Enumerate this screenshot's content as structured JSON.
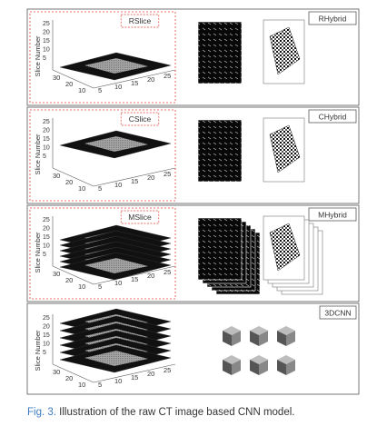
{
  "figure": {
    "caption_number": "Fig. 3.",
    "caption_text": "Illustration of the raw CT image based CNN model."
  },
  "panels": [
    {
      "model_tag": "RHybrid",
      "slice_tag": "RSlice",
      "z_label": "Slice Number",
      "z_ticks": [
        "25",
        "20",
        "15",
        "10",
        "5"
      ],
      "depth_ticks": [
        "30",
        "20",
        "10"
      ],
      "width_ticks": [
        "5",
        "10",
        "15",
        "20",
        "25"
      ]
    },
    {
      "model_tag": "CHybrid",
      "slice_tag": "CSlice",
      "z_label": "Slice Number",
      "z_ticks": [
        "25",
        "20",
        "15",
        "10",
        "5"
      ],
      "depth_ticks": [
        "30",
        "20",
        "10"
      ],
      "width_ticks": [
        "5",
        "10",
        "15",
        "20",
        "25"
      ]
    },
    {
      "model_tag": "MHybrid",
      "slice_tag": "MSlice",
      "z_label": "Slice Number",
      "z_ticks": [
        "25",
        "20",
        "15",
        "10",
        "5"
      ],
      "depth_ticks": [
        "30",
        "20",
        "10"
      ],
      "width_ticks": [
        "5",
        "10",
        "15",
        "20",
        "25"
      ]
    },
    {
      "model_tag": "3DCNN",
      "z_label": "Slice Number",
      "z_ticks": [
        "25",
        "20",
        "15",
        "10",
        "5"
      ],
      "depth_ticks": [
        "30",
        "20",
        "10"
      ],
      "width_ticks": [
        "5",
        "10",
        "15",
        "20",
        "25"
      ]
    }
  ],
  "colors": {
    "panel_border": "#555555",
    "slice_box_border": "#e0443a",
    "caption_accent": "#3d7bbf",
    "slice_fill": "#111111",
    "tissue": "#9a9a9a"
  }
}
